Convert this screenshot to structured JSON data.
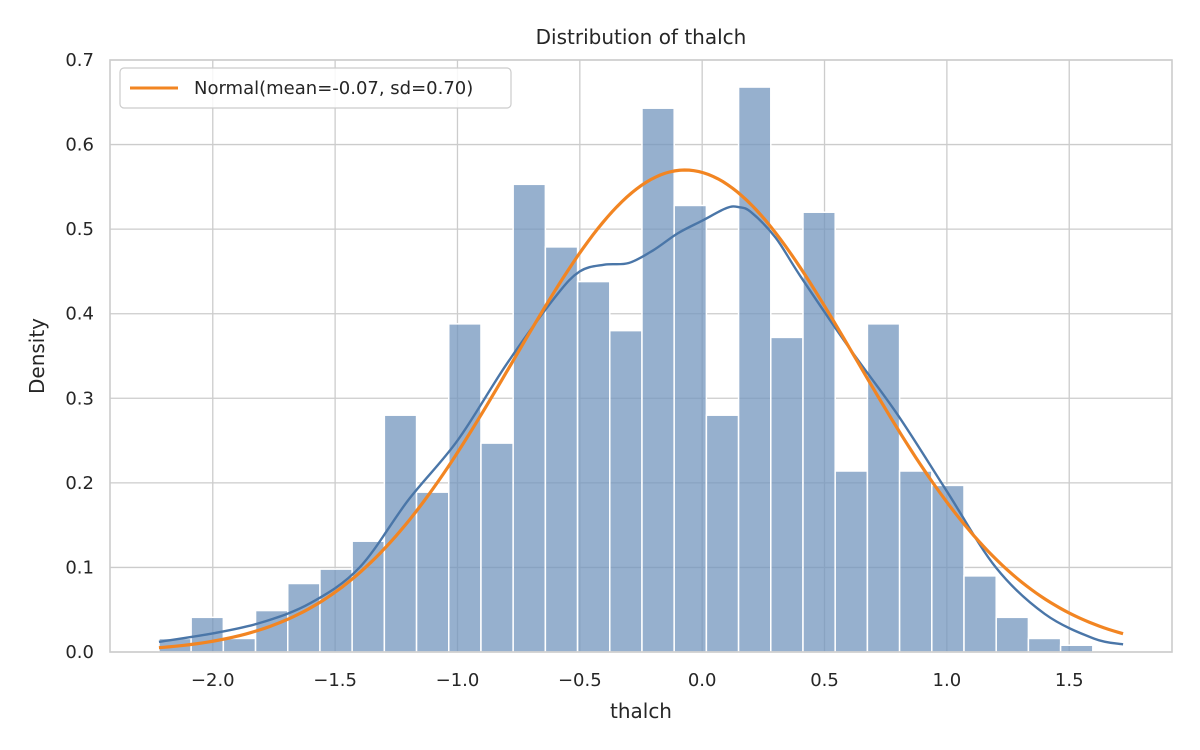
{
  "chart_data": {
    "type": "bar",
    "title": "Distribution of thalch",
    "xlabel": "thalch",
    "ylabel": "Density",
    "xlim": [
      -2.42,
      1.92
    ],
    "ylim": [
      0,
      0.7
    ],
    "xticks": [
      -2.0,
      -1.5,
      -1.0,
      -0.5,
      0.0,
      0.5,
      1.0,
      1.5
    ],
    "xtick_labels": [
      "−2.0",
      "−1.5",
      "−1.0",
      "−0.5",
      "0.0",
      "0.5",
      "1.0",
      "1.5"
    ],
    "yticks": [
      0.0,
      0.1,
      0.2,
      0.3,
      0.4,
      0.5,
      0.6,
      0.7
    ],
    "ytick_labels": [
      "0.0",
      "0.1",
      "0.2",
      "0.3",
      "0.4",
      "0.5",
      "0.6",
      "0.7"
    ],
    "grid": true,
    "legend_position": "top-left",
    "colors": {
      "bars": "#7396bd",
      "kde": "#4a76a8",
      "normal": "#f28522",
      "grid": "#cccccc",
      "frame": "#cccccc"
    },
    "histogram": {
      "bin_start": -2.22,
      "bin_width": 0.1316,
      "densities": [
        0.016,
        0.041,
        0.016,
        0.049,
        0.081,
        0.098,
        0.131,
        0.28,
        0.189,
        0.388,
        0.247,
        0.553,
        0.479,
        0.438,
        0.38,
        0.643,
        0.528,
        0.28,
        0.668,
        0.372,
        0.52,
        0.214,
        0.388,
        0.214,
        0.197,
        0.09,
        0.041,
        0.016,
        0.008,
        0.0
      ]
    },
    "kde": {
      "x": [
        -2.22,
        -2.0,
        -1.8,
        -1.6,
        -1.4,
        -1.2,
        -1.0,
        -0.8,
        -0.6,
        -0.5,
        -0.4,
        -0.3,
        -0.2,
        -0.1,
        0.0,
        0.1,
        0.15,
        0.2,
        0.3,
        0.4,
        0.6,
        0.8,
        1.0,
        1.2,
        1.4,
        1.6,
        1.72
      ],
      "y": [
        0.012,
        0.022,
        0.035,
        0.058,
        0.1,
        0.18,
        0.25,
        0.34,
        0.42,
        0.45,
        0.458,
        0.46,
        0.475,
        0.495,
        0.51,
        0.525,
        0.526,
        0.52,
        0.49,
        0.445,
        0.36,
        0.28,
        0.19,
        0.1,
        0.045,
        0.016,
        0.009
      ]
    },
    "series": [
      {
        "name": "Normal(mean=-0.07, sd=0.70)",
        "type": "line",
        "mean": -0.07,
        "sd": 0.7,
        "x_range": [
          -2.22,
          1.72
        ]
      }
    ]
  }
}
